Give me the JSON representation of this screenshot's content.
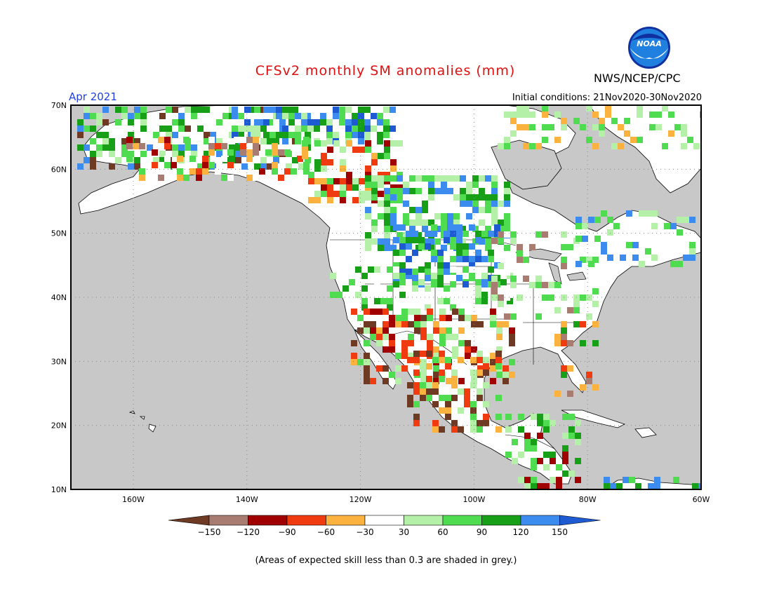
{
  "header": {
    "title": "CFSv2 monthly SM anomalies (mm)",
    "agency": "NWS/NCEP/CPC",
    "valid_month": "Apr 2021",
    "initial_conditions": "Initial conditions: 21Nov2020-30Nov2020",
    "logo_text": "NOAA"
  },
  "map": {
    "lat_labels": [
      "70N",
      "60N",
      "50N",
      "40N",
      "30N",
      "20N",
      "10N"
    ],
    "lon_labels": [
      "160W",
      "140W",
      "120W",
      "100W",
      "80W",
      "60W"
    ],
    "lat_values": [
      70,
      60,
      50,
      40,
      30,
      20,
      10
    ],
    "lon_values": [
      -160,
      -140,
      -120,
      -100,
      -80,
      -60
    ],
    "extent": {
      "lon_min": -171,
      "lon_max": -60,
      "lat_min": 10,
      "lat_max": 70
    },
    "colors": {
      "ocean_grey": "#c8c8c8",
      "land_white": "#ffffff",
      "coast": "#000000",
      "grid": "#888888"
    }
  },
  "legend": {
    "ticks": [
      "−150",
      "−120",
      "−90",
      "−60",
      "−30",
      "30",
      "60",
      "90",
      "120",
      "150"
    ],
    "colors": [
      "#6e3a24",
      "#a87c70",
      "#a00000",
      "#f03a10",
      "#fbb23e",
      "#ffffff",
      "#b4f0a8",
      "#50dc50",
      "#17a017",
      "#3c8cf0",
      "#1e5ad2"
    ]
  },
  "footnote": "(Areas of expected skill less than 0.3 are shaded in grey.)"
}
